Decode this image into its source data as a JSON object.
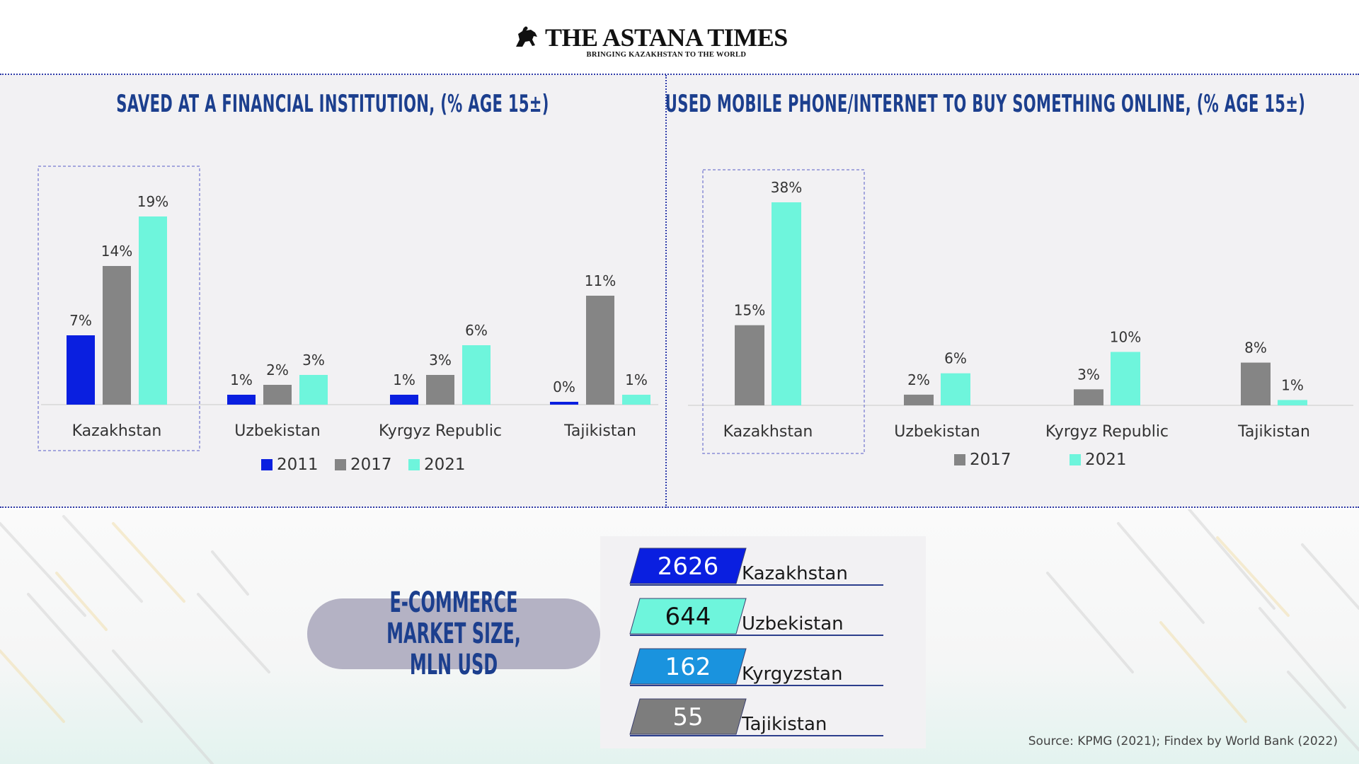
{
  "brand": {
    "title": "THE ASTANA TIMES",
    "tagline": "BRINGING KAZAKHSTAN TO THE WORLD",
    "logo_icon": "horse-rider-icon"
  },
  "chart_data": [
    {
      "type": "bar",
      "title": "SAVED AT A FINANCIAL INSTITUTION, (% AGE 15±)",
      "categories": [
        "Kazakhstan",
        "Uzbekistan",
        "Kyrgyz Republic",
        "Tajikistan"
      ],
      "series": [
        {
          "name": "2011",
          "color": "#0a1fe0",
          "values": [
            7,
            1,
            1,
            0
          ]
        },
        {
          "name": "2017",
          "color": "#858585",
          "values": [
            14,
            2,
            3,
            11
          ]
        },
        {
          "name": "2021",
          "color": "#6ef5dc",
          "values": [
            19,
            3,
            6,
            1
          ]
        }
      ],
      "value_suffix": "%",
      "highlight_category": "Kazakhstan",
      "legend": "bottom"
    },
    {
      "type": "bar",
      "title": "USED MOBILE PHONE/INTERNET TO BUY SOMETHING ONLINE, (% AGE 15±)",
      "categories": [
        "Kazakhstan",
        "Uzbekistan",
        "Kyrgyz Republic",
        "Tajikistan"
      ],
      "series": [
        {
          "name": "2017",
          "color": "#858585",
          "values": [
            15,
            2,
            3,
            8
          ]
        },
        {
          "name": "2021",
          "color": "#6ef5dc",
          "values": [
            38,
            6,
            10,
            1
          ]
        }
      ],
      "value_suffix": "%",
      "highlight_category": "Kazakhstan",
      "legend": "bottom"
    },
    {
      "type": "table",
      "title": "E-COMMERCE MARKET SIZE, MLN USD",
      "rows": [
        {
          "value": "2626",
          "country": "Kazakhstan",
          "color": "#0a1fe0",
          "text_color": "#ffffff"
        },
        {
          "value": "644",
          "country": "Uzbekistan",
          "color": "#6ef5dc",
          "text_color": "#111111"
        },
        {
          "value": "162",
          "country": "Kyrgyzstan",
          "color": "#1a93de",
          "text_color": "#ffffff"
        },
        {
          "value": "55",
          "country": "Tajikistan",
          "color": "#7d7d7d",
          "text_color": "#ffffff"
        }
      ]
    }
  ],
  "source": "Source: KPMG (2021); Findex by World Bank (2022)"
}
